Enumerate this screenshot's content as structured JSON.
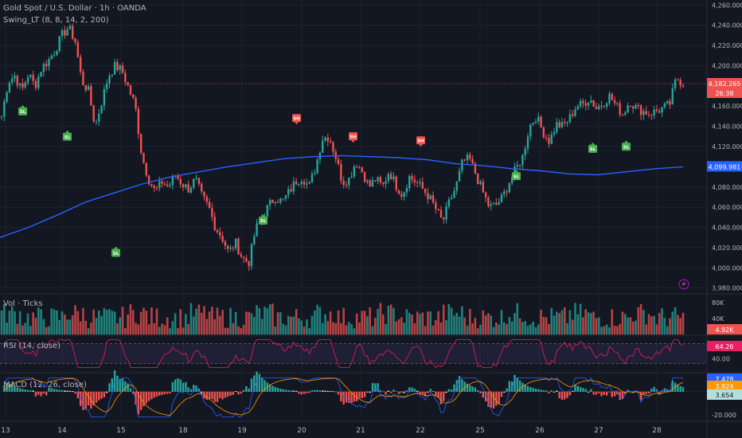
{
  "header": {
    "title": "Gold Spot / U.S. Dollar · 1h · OANDA",
    "indicator": "Swing_LT (8, 8, 14, 2, 200)"
  },
  "panes": {
    "volume_label": "Vol · Ticks",
    "rsi_label": "RSI (14, close)",
    "macd_label": "MACD (12, 26, close)"
  },
  "colors": {
    "background": "#131722",
    "up": "#26a69a",
    "down": "#ef5350",
    "ma_line": "#2962ff",
    "rsi_line": "#e91e63",
    "macd_line": "#2962ff",
    "signal_line": "#ff9800",
    "sh_marker": "#f05350",
    "sl_marker": "#4caf50",
    "lightning": "#9c27b0"
  },
  "chart_data": [
    {
      "type": "candlestick",
      "title": "Gold Spot / U.S. Dollar · 1h · OANDA",
      "y_ticks": [
        "4,260.000",
        "4,240.000",
        "4,220.000",
        "4,200.000",
        "4,160.000",
        "4,140.000",
        "4,120.000",
        "4,080.000",
        "4,060.000",
        "4,040.000",
        "4,020.000",
        "4,000.000",
        "3,980.000"
      ],
      "x_ticks": [
        "13",
        "14",
        "15",
        "18",
        "19",
        "20",
        "21",
        "22",
        "25",
        "26",
        "27",
        "28"
      ],
      "ylim": [
        3975,
        4265
      ],
      "price_close": [
        4150,
        4185,
        4190,
        4175,
        4192,
        4180,
        4198,
        4205,
        4215,
        4230,
        4238,
        4225,
        4185,
        4175,
        4140,
        4165,
        4190,
        4200,
        4195,
        4178,
        4160,
        4110,
        4088,
        4075,
        4085,
        4080,
        4092,
        4083,
        4078,
        4088,
        4070,
        4060,
        4040,
        4030,
        4015,
        4025,
        4010,
        4005,
        4038,
        4050,
        4062,
        4070,
        4065,
        4075,
        4085,
        4090,
        4080,
        4100,
        4128,
        4130,
        4110,
        4085,
        4088,
        4105,
        4095,
        4080,
        4088,
        4080,
        4096,
        4082,
        4072,
        4090,
        4085,
        4078,
        4070,
        4058,
        4045,
        4065,
        4080,
        4105,
        4108,
        4092,
        4075,
        4060,
        4062,
        4070,
        4085,
        4098,
        4110,
        4140,
        4150,
        4135,
        4125,
        4142,
        4140,
        4148,
        4160,
        4162,
        4168,
        4158,
        4163,
        4170,
        4160,
        4152,
        4165,
        4158,
        4155,
        4153,
        4155,
        4158,
        4162,
        4188,
        4182
      ],
      "ma_200": [
        4030,
        4040,
        4052,
        4065,
        4074,
        4083,
        4090,
        4095,
        4100,
        4104,
        4108,
        4110,
        4111,
        4110,
        4109,
        4107,
        4103,
        4101,
        4098,
        4096,
        4093,
        4092,
        4095,
        4098,
        4100
      ],
      "last_price": "4,182.265",
      "countdown": "26:38",
      "ma_value": "4,099.981",
      "swing_markers": [
        {
          "label": "SL",
          "price": 4165
        },
        {
          "label": "SL",
          "price": 4140
        },
        {
          "label": "SL",
          "price": 4025
        },
        {
          "label": "SL",
          "price": 4057
        },
        {
          "label": "SH",
          "price": 4130
        },
        {
          "label": "SH",
          "price": 4112
        },
        {
          "label": "SH",
          "price": 4108
        },
        {
          "label": "SL",
          "price": 4101
        },
        {
          "label": "SL",
          "price": 4128
        },
        {
          "label": "SL",
          "price": 4130
        }
      ]
    },
    {
      "type": "bar",
      "title": "Vol · Ticks",
      "y_ticks": [
        "80K",
        "40K"
      ],
      "ylim": [
        0,
        100000
      ],
      "current_value": "4.92K"
    },
    {
      "type": "line",
      "title": "RSI (14, close)",
      "y_ticks": [
        "40.00"
      ],
      "ylim": [
        15,
        85
      ],
      "current_value": "64.26",
      "band": [
        30,
        70
      ]
    },
    {
      "type": "line",
      "title": "MACD (12, 26, close)",
      "y_ticks": [
        "-20.000"
      ],
      "ylim": [
        -25,
        15
      ],
      "current_values": {
        "macd": "7.478",
        "signal": "3.824",
        "histogram": "3.654"
      }
    }
  ]
}
